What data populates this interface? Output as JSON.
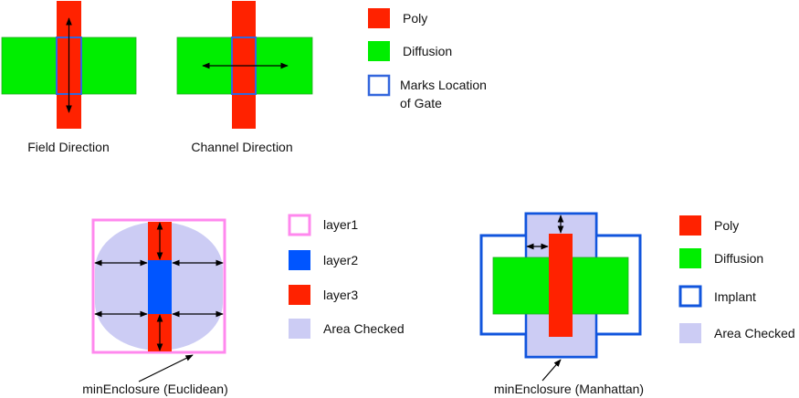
{
  "top": {
    "left_caption": "Field Direction",
    "middle_caption": "Channel Direction",
    "legend": [
      {
        "label": "Poly",
        "icon": "poly-swatch-icon"
      },
      {
        "label": "Diffusion",
        "icon": "diffusion-swatch-icon"
      },
      {
        "label_line1": "Marks Location",
        "label_line2": "of Gate",
        "icon": "gate-outline-icon"
      }
    ]
  },
  "euclidean": {
    "caption": "minEnclosure (Euclidean)",
    "legend": [
      {
        "label": "layer1",
        "icon": "layer1-outline-icon"
      },
      {
        "label": "layer2",
        "icon": "layer2-swatch-icon"
      },
      {
        "label": "layer3",
        "icon": "layer3-swatch-icon"
      },
      {
        "label": "Area Checked",
        "icon": "area-checked-swatch-icon"
      }
    ]
  },
  "manhattan": {
    "caption": "minEnclosure (Manhattan)",
    "legend": [
      {
        "label": "Poly",
        "icon": "poly-swatch-icon"
      },
      {
        "label": "Diffusion",
        "icon": "diffusion-swatch-icon"
      },
      {
        "label": "Implant",
        "icon": "implant-outline-icon"
      },
      {
        "label": "Area Checked",
        "icon": "area-checked-swatch-icon"
      }
    ]
  },
  "colors": {
    "poly": "#ff2200",
    "diffusion": "#00ee00",
    "gate_outline": "#3366dd",
    "layer1": "#ff88ee",
    "layer2": "#0055ff",
    "implant": "#1155dd",
    "area_checked": "#ccccf4"
  }
}
